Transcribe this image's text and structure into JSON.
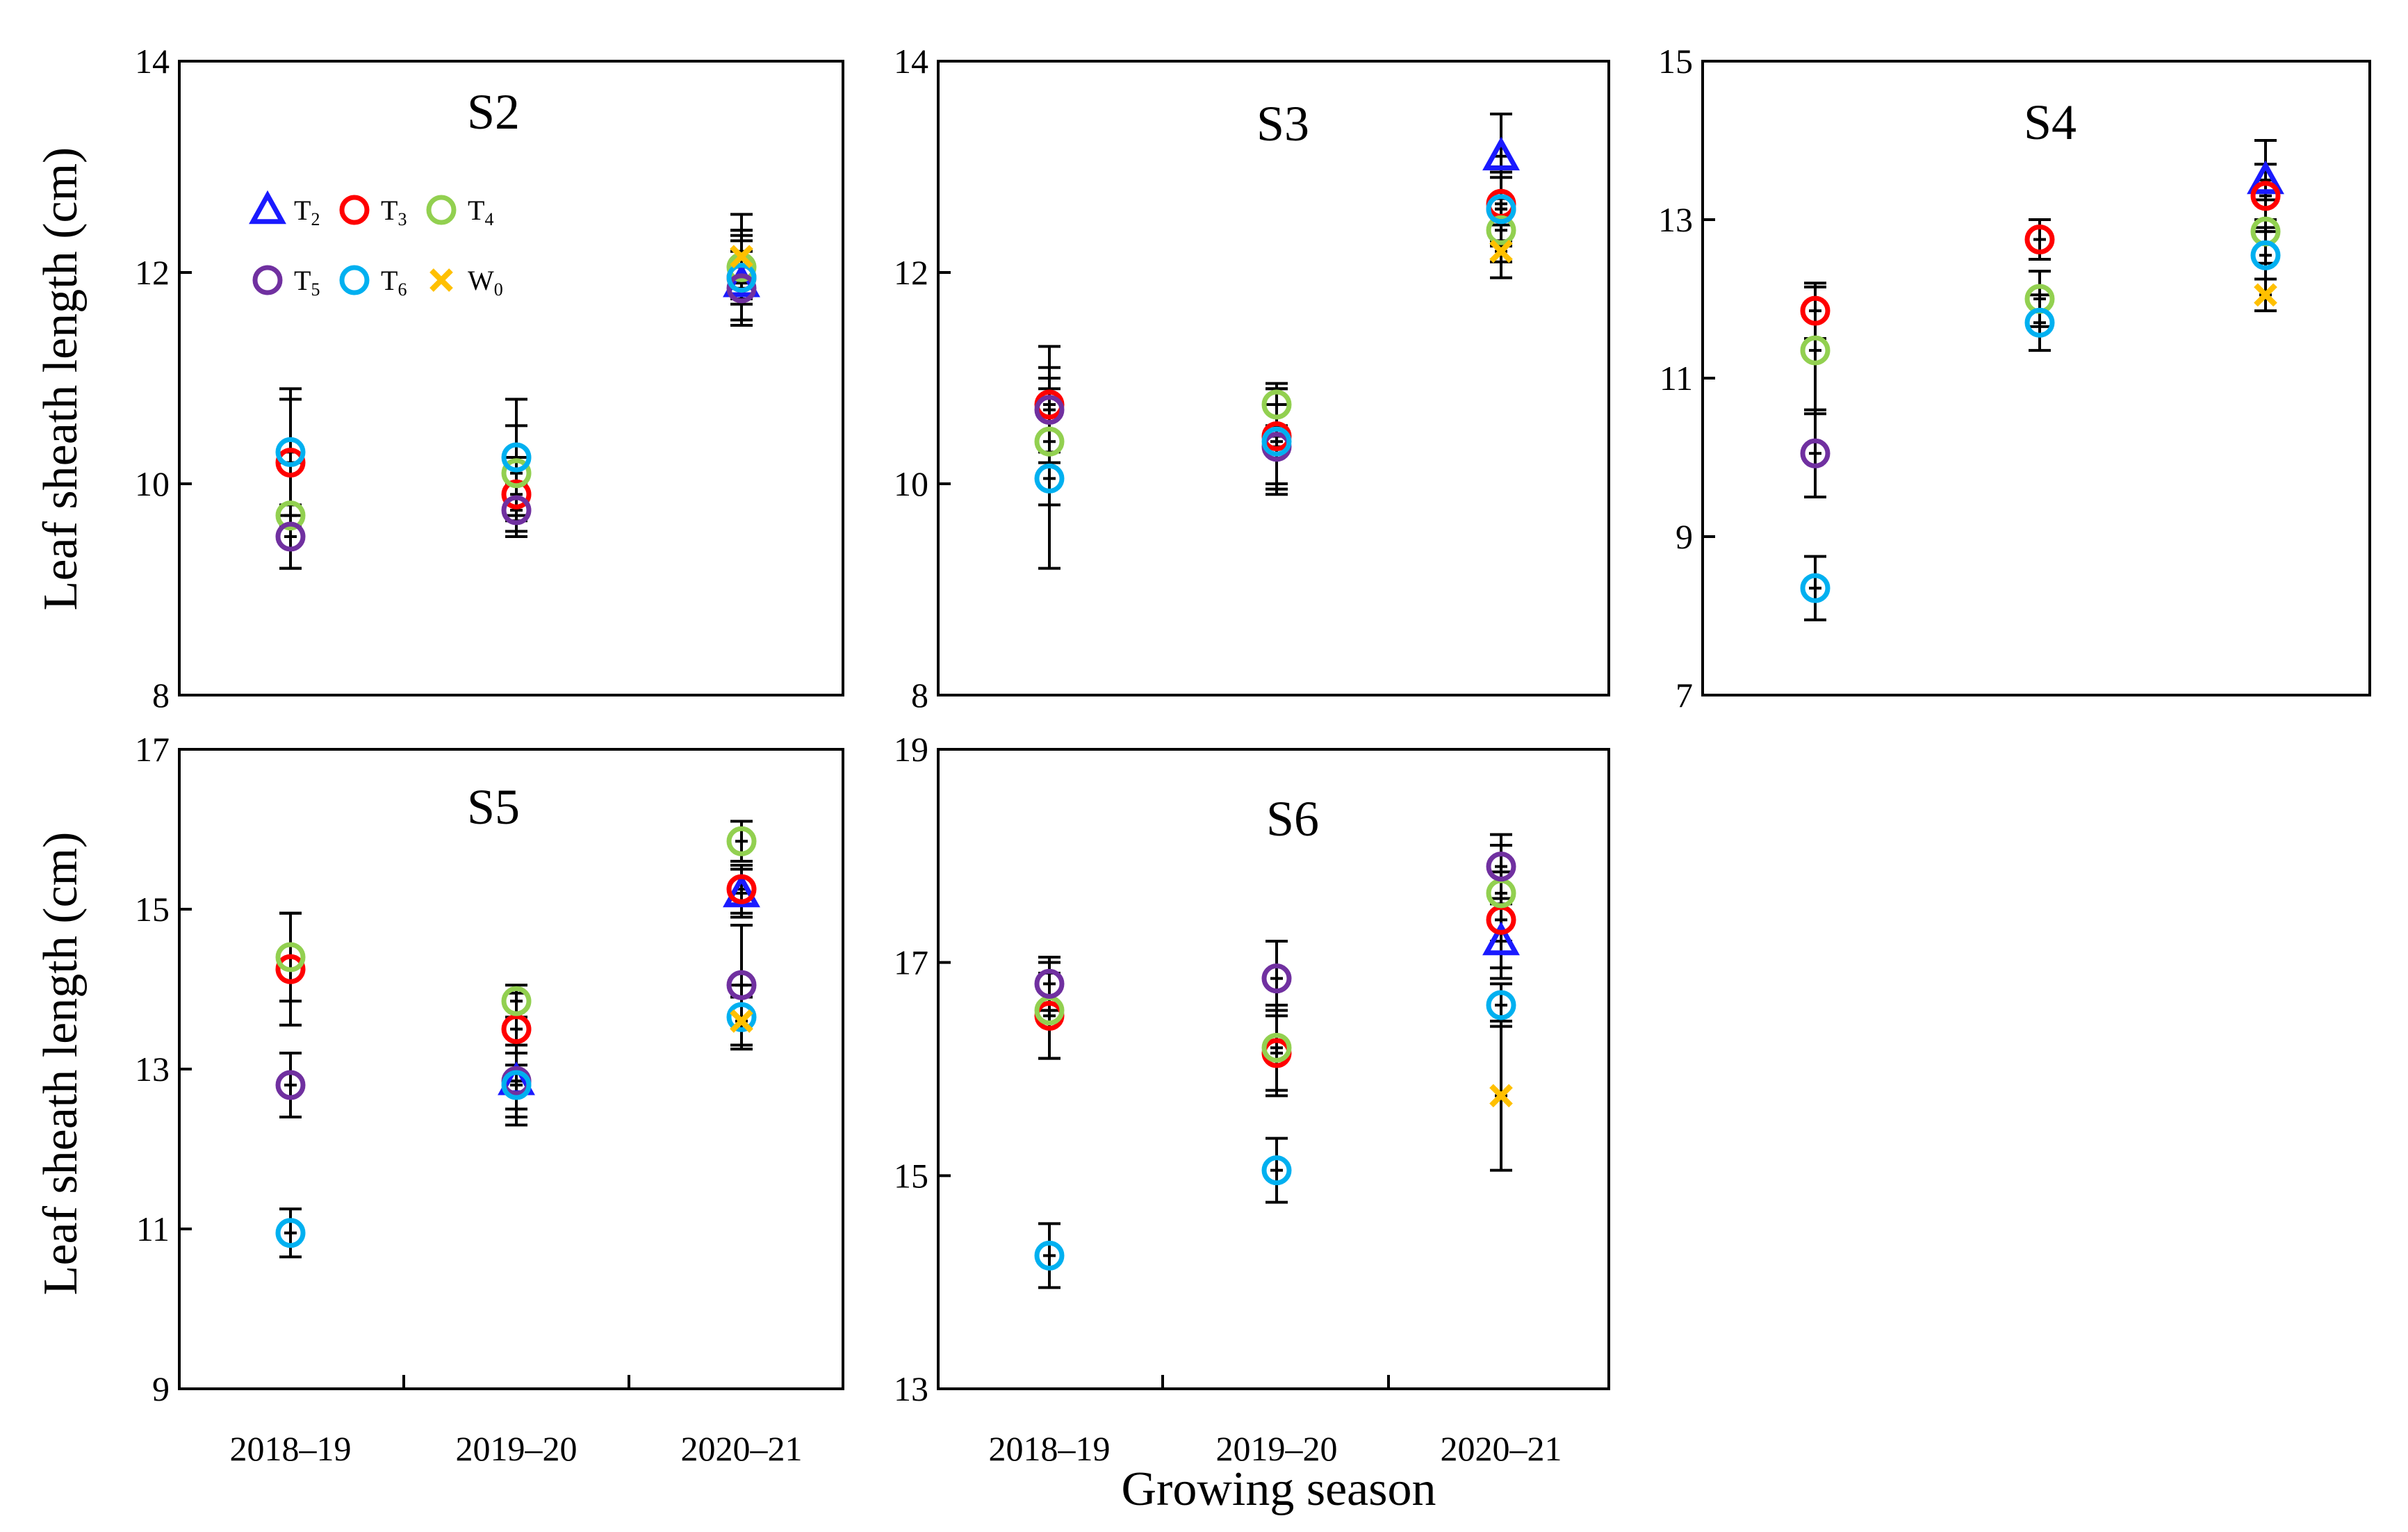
{
  "figure": {
    "ylabel": "Leaf sheath length (cm)",
    "xlabel": "Growing season"
  },
  "legend": {
    "entries": [
      {
        "key": "T2",
        "base": "T",
        "sub": "2",
        "marker": "triangle",
        "color": "#1a1aff"
      },
      {
        "key": "T3",
        "base": "T",
        "sub": "3",
        "marker": "circle",
        "color": "#ff0000"
      },
      {
        "key": "T4",
        "base": "T",
        "sub": "4",
        "marker": "circle",
        "color": "#92d050"
      },
      {
        "key": "T5",
        "base": "T",
        "sub": "5",
        "marker": "circle",
        "color": "#7030a0"
      },
      {
        "key": "T6",
        "base": "T",
        "sub": "6",
        "marker": "circle",
        "color": "#00b0f0"
      },
      {
        "key": "W0",
        "base": "W",
        "sub": "0",
        "marker": "cross",
        "color": "#ffc000"
      }
    ]
  },
  "chart_data": [
    {
      "type": "scatter",
      "title": "S2",
      "categories": [
        "2018–19",
        "2019–20",
        "2020–21"
      ],
      "ylim": [
        8,
        14
      ],
      "yticks": [
        8,
        10,
        12,
        14
      ],
      "series": [
        {
          "name": "T2",
          "values": [
            null,
            null,
            11.9
          ],
          "errors": [
            null,
            null,
            0.4
          ]
        },
        {
          "name": "T3",
          "values": [
            10.2,
            9.9,
            11.95
          ],
          "errors": [
            0.6,
            0.35,
            0.4
          ]
        },
        {
          "name": "T4",
          "values": [
            9.7,
            10.1,
            12.05
          ],
          "errors": [
            0.5,
            0.45,
            0.35
          ]
        },
        {
          "name": "T5",
          "values": [
            9.5,
            9.75,
            11.85
          ],
          "errors": [
            0.3,
            0.25,
            0.35
          ]
        },
        {
          "name": "T6",
          "values": [
            10.3,
            10.25,
            11.95
          ],
          "errors": [
            0.6,
            0.55,
            0.45
          ]
        },
        {
          "name": "W0",
          "values": [
            null,
            null,
            12.15
          ],
          "errors": [
            null,
            null,
            0.4
          ]
        }
      ]
    },
    {
      "type": "scatter",
      "title": "S3",
      "categories": [
        "2018–19",
        "2019–20",
        "2020–21"
      ],
      "ylim": [
        8,
        14
      ],
      "yticks": [
        8,
        10,
        12,
        14
      ],
      "series": [
        {
          "name": "T2",
          "values": [
            null,
            null,
            13.1
          ],
          "errors": [
            null,
            null,
            0.4
          ]
        },
        {
          "name": "T3",
          "values": [
            10.75,
            10.45,
            12.65
          ],
          "errors": [
            0.55,
            0.45,
            0.35
          ]
        },
        {
          "name": "T4",
          "values": [
            10.4,
            10.75,
            12.4
          ],
          "errors": [
            0.6,
            0.2,
            0.3
          ]
        },
        {
          "name": "T5",
          "values": [
            10.7,
            10.35,
            12.6
          ],
          "errors": [
            0.4,
            0.4,
            0.3
          ]
        },
        {
          "name": "T6",
          "values": [
            10.05,
            10.4,
            12.6
          ],
          "errors": [
            0.85,
            0.5,
            0.35
          ]
        },
        {
          "name": "W0",
          "values": [
            null,
            null,
            12.2
          ],
          "errors": [
            null,
            null,
            0.25
          ]
        }
      ]
    },
    {
      "type": "scatter",
      "title": "S4",
      "categories": [
        "2018–19",
        "2019–20",
        "2020–21"
      ],
      "ylim": [
        7,
        15
      ],
      "yticks": [
        7,
        9,
        11,
        13,
        15
      ],
      "series": [
        {
          "name": "T2",
          "values": [
            null,
            null,
            13.5
          ],
          "errors": [
            null,
            null,
            0.5
          ]
        },
        {
          "name": "T3",
          "values": [
            11.85,
            12.75,
            13.3
          ],
          "errors": [
            0.35,
            0.25,
            0.4
          ]
        },
        {
          "name": "T4",
          "values": [
            11.35,
            12.0,
            12.85
          ],
          "errors": [
            0.8,
            0.35,
            0.4
          ]
        },
        {
          "name": "T5",
          "values": [
            10.05,
            null,
            null
          ],
          "errors": [
            0.55,
            null,
            null
          ]
        },
        {
          "name": "T6",
          "values": [
            8.35,
            11.7,
            12.55
          ],
          "errors": [
            0.4,
            0.35,
            0.3
          ]
        },
        {
          "name": "W0",
          "values": [
            null,
            null,
            12.05
          ],
          "errors": [
            null,
            null,
            0.2
          ]
        }
      ]
    },
    {
      "type": "scatter",
      "title": "S5",
      "categories": [
        "2018–19",
        "2019–20",
        "2020–21"
      ],
      "ylim": [
        9,
        17
      ],
      "yticks": [
        9,
        11,
        13,
        15,
        17
      ],
      "series": [
        {
          "name": "T2",
          "values": [
            null,
            12.85,
            15.2
          ],
          "errors": [
            null,
            0.45,
            0.3
          ]
        },
        {
          "name": "T3",
          "values": [
            14.25,
            13.5,
            15.25
          ],
          "errors": [
            0.7,
            0.45,
            0.3
          ]
        },
        {
          "name": "T4",
          "values": [
            14.4,
            13.85,
            15.85
          ],
          "errors": [
            0.55,
            0.2,
            0.25
          ]
        },
        {
          "name": "T5",
          "values": [
            12.8,
            12.85,
            14.05
          ],
          "errors": [
            0.4,
            0.35,
            0.75
          ]
        },
        {
          "name": "T6",
          "values": [
            10.95,
            12.8,
            13.65
          ],
          "errors": [
            0.3,
            0.5,
            0.4
          ]
        },
        {
          "name": "W0",
          "values": [
            null,
            null,
            13.6
          ],
          "errors": [
            null,
            null,
            0.3
          ]
        }
      ]
    },
    {
      "type": "scatter",
      "title": "S6",
      "categories": [
        "2018–19",
        "2019–20",
        "2020–21"
      ],
      "ylim": [
        13,
        19
      ],
      "yticks": [
        13,
        15,
        17,
        19
      ],
      "series": [
        {
          "name": "T2",
          "values": [
            null,
            null,
            17.2
          ],
          "errors": [
            null,
            null,
            0.35
          ]
        },
        {
          "name": "T3",
          "values": [
            16.5,
            16.15,
            17.4
          ],
          "errors": [
            0.4,
            0.4,
            0.45
          ]
        },
        {
          "name": "T4",
          "values": [
            16.55,
            16.2,
            17.65
          ],
          "errors": [
            0.45,
            0.4,
            0.45
          ]
        },
        {
          "name": "T5",
          "values": [
            16.8,
            16.85,
            17.9
          ],
          "errors": [
            0.25,
            0.35,
            0.3
          ]
        },
        {
          "name": "T6",
          "values": [
            14.25,
            15.05,
            16.6
          ],
          "errors": [
            0.3,
            0.3,
            0.2
          ]
        },
        {
          "name": "W0",
          "values": [
            null,
            null,
            15.75
          ],
          "errors": [
            null,
            null,
            0.7
          ]
        }
      ]
    }
  ]
}
